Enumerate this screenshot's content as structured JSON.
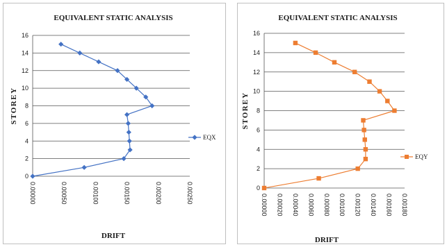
{
  "chart_data": [
    {
      "type": "line",
      "title": "EQUIVALENT STATIC ANALYSIS",
      "xlabel": "DRIFT",
      "ylabel": "STOREY",
      "xlim": [
        0,
        0.0025
      ],
      "ylim": [
        0,
        16
      ],
      "x_ticks": [
        "0.00000",
        "0.00050",
        "0.00100",
        "0.00150",
        "0.00200",
        "0.00250"
      ],
      "y_ticks": [
        "0",
        "2",
        "4",
        "6",
        "8",
        "10",
        "12",
        "14",
        "16"
      ],
      "grid": true,
      "legend": "right",
      "color": "#4472c4",
      "marker": "diamond",
      "series": [
        {
          "name": "EQX",
          "x": [
            0.0,
            0.00082,
            0.00145,
            0.00155,
            0.00154,
            0.00153,
            0.00152,
            0.0015,
            0.0019,
            0.0018,
            0.00165,
            0.0015,
            0.00135,
            0.00105,
            0.00075,
            0.00045
          ],
          "y": [
            0,
            1,
            2,
            3,
            4,
            5,
            6,
            7,
            8,
            9,
            10,
            11,
            12,
            13,
            14,
            15
          ]
        }
      ]
    },
    {
      "type": "line",
      "title": "EQUIVALENT STATIC ANALYSIS",
      "xlabel": "DRIFT",
      "ylabel": "STOREY",
      "xlim": [
        0,
        0.0018
      ],
      "ylim": [
        0,
        16
      ],
      "x_ticks": [
        "0.00000",
        "0.00020",
        "0.00040",
        "0.00060",
        "0.00080",
        "0.00100",
        "0.00120",
        "0.00140",
        "0.00160",
        "0.00180"
      ],
      "y_ticks": [
        "0",
        "2",
        "4",
        "6",
        "8",
        "10",
        "12",
        "14",
        "16"
      ],
      "grid": true,
      "legend": "right",
      "color": "#ed7d31",
      "marker": "square",
      "series": [
        {
          "name": "EQY",
          "x": [
            0.0,
            0.0007,
            0.0012,
            0.0013,
            0.0013,
            0.00129,
            0.00128,
            0.00127,
            0.00167,
            0.00158,
            0.00148,
            0.00135,
            0.00116,
            0.0009,
            0.00066,
            0.0004
          ],
          "y": [
            0,
            1,
            2,
            3,
            4,
            5,
            6,
            7,
            8,
            9,
            10,
            11,
            12,
            13,
            14,
            15
          ]
        }
      ]
    }
  ]
}
